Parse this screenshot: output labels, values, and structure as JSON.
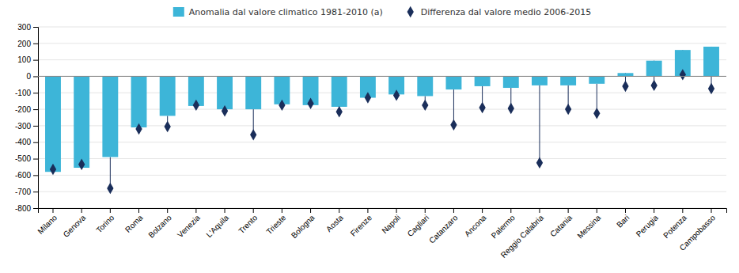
{
  "chart_data": {
    "type": "bar",
    "categories": [
      "Milano",
      "Genova",
      "Torino",
      "Roma",
      "Bolzano",
      "Venezia",
      "L'Aquila",
      "Trento",
      "Trieste",
      "Bologna",
      "Aosta",
      "Firenze",
      "Napoli",
      "Cagliari",
      "Catanzaro",
      "Ancona",
      "Palermo",
      "Reggio Calabria",
      "Catania",
      "Messina",
      "Bari",
      "Perugia",
      "Potenza",
      "Campobasso"
    ],
    "series": [
      {
        "name": "Anomalia dal valore climatico 1981-2010 (a)",
        "type": "bar",
        "color": "#3db5d8",
        "values": [
          -580,
          -555,
          -490,
          -310,
          -240,
          -180,
          -200,
          -200,
          -170,
          -175,
          -185,
          -130,
          -110,
          -120,
          -80,
          -60,
          -70,
          -55,
          -55,
          -45,
          20,
          95,
          160,
          180
        ]
      },
      {
        "name": "Differenza dal valore medio 2006-2015",
        "type": "scatter",
        "marker": "diamond",
        "color": "#1a2e5a",
        "values": [
          -565,
          -535,
          -680,
          -320,
          -305,
          -175,
          -210,
          -355,
          -175,
          -165,
          -215,
          -130,
          -115,
          -175,
          -295,
          -190,
          -195,
          -525,
          -200,
          -225,
          -60,
          -55,
          10,
          -75
        ]
      }
    ],
    "ylim": [
      -800,
      300
    ],
    "yticks": [
      -800,
      -700,
      -600,
      -500,
      -400,
      -300,
      -200,
      -100,
      0,
      100,
      200,
      300
    ],
    "grid": true,
    "legend": "top"
  }
}
